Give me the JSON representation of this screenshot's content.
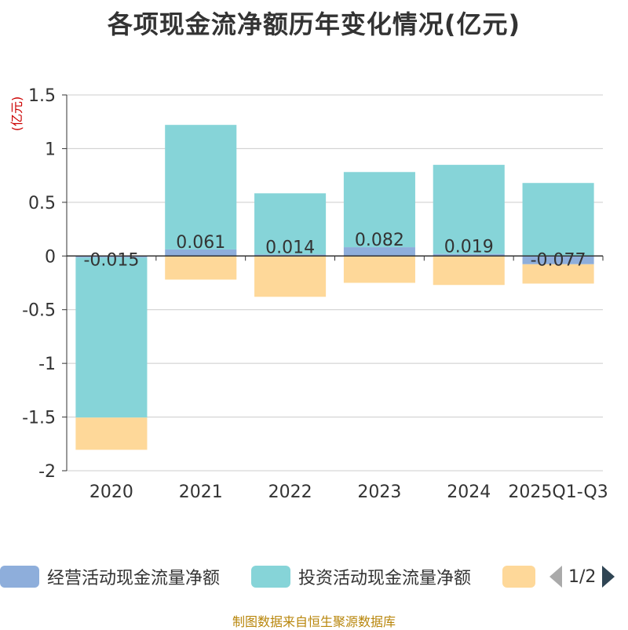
{
  "title": "各项现金流净额历年变化情况(亿元)",
  "source_note": "制图数据来自恒生聚源数据库",
  "legend": {
    "items": [
      {
        "label": "经营活动现金流量净额",
        "color": "#8eaedb"
      },
      {
        "label": "投资活动现金流量净额",
        "color": "#86d4d8"
      },
      {
        "label": "",
        "color": "#fed899"
      }
    ],
    "page": "1/2"
  },
  "chart_data": {
    "type": "bar",
    "stacked": true,
    "categories": [
      "2020",
      "2021",
      "2022",
      "2023",
      "2024",
      "2025Q1-Q3"
    ],
    "ylabel": "(亿元)",
    "ylim": [
      -2,
      1.5
    ],
    "yticks": [
      1.5,
      1,
      0.5,
      0,
      -0.5,
      -1,
      -1.5,
      -2
    ],
    "ytick_labels": [
      "1.5",
      "1",
      "0.5",
      "0",
      "-0.5",
      "-1",
      "-1.5",
      "-2"
    ],
    "grid": true,
    "series": [
      {
        "name": "经营活动现金流量净额",
        "color": "#8eaedb",
        "values": [
          -0.015,
          0.061,
          0.014,
          0.082,
          0.019,
          -0.077
        ],
        "data_labels": [
          "-0.015",
          "0.061",
          "0.014",
          "0.082",
          "0.019",
          "-0.077"
        ]
      },
      {
        "name": "投资活动现金流量净额",
        "color": "#86d4d8",
        "values": [
          -1.49,
          1.16,
          0.57,
          0.7,
          0.83,
          0.68
        ]
      },
      {
        "color": "#fed899",
        "values": [
          -0.3,
          -0.22,
          -0.38,
          -0.25,
          -0.27,
          -0.18
        ]
      }
    ]
  }
}
